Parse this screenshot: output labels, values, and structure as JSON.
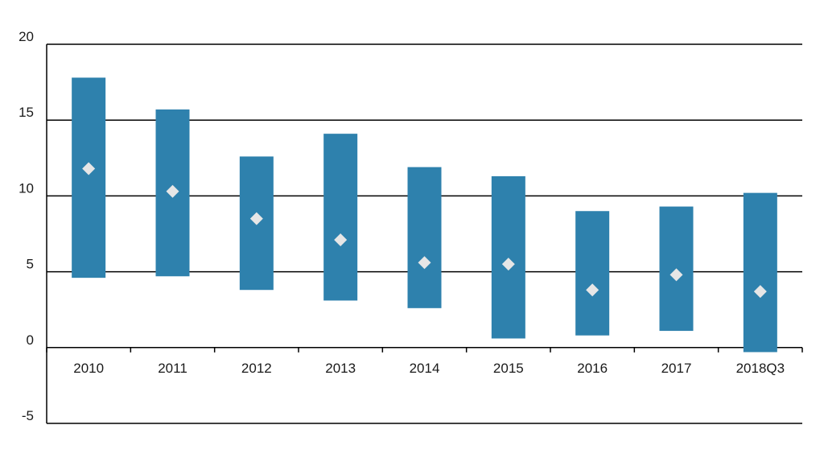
{
  "chart_data": {
    "type": "range-bar",
    "title": "",
    "xlabel": "",
    "ylabel": "",
    "categories": [
      "2010",
      "2011",
      "2012",
      "2013",
      "2014",
      "2015",
      "2016",
      "2017",
      "2018Q3"
    ],
    "series": [
      {
        "low": [
          4.6,
          4.7,
          3.8,
          3.1,
          2.6,
          0.6,
          0.8,
          1.1,
          -0.3
        ]
      },
      {
        "high": [
          17.8,
          15.7,
          12.6,
          14.1,
          11.9,
          11.3,
          9.0,
          9.3,
          10.2
        ]
      },
      {
        "point": [
          11.8,
          10.3,
          8.5,
          7.1,
          5.6,
          5.5,
          3.8,
          4.8,
          3.7
        ]
      }
    ],
    "ylim": [
      -5,
      20
    ],
    "yticks": [
      "20",
      "15",
      "10",
      "5",
      "0",
      "-5"
    ],
    "grid": true,
    "colors": {
      "bar": "#2e81ad",
      "marker": "#e6e6e6",
      "axis": "#000000"
    }
  }
}
